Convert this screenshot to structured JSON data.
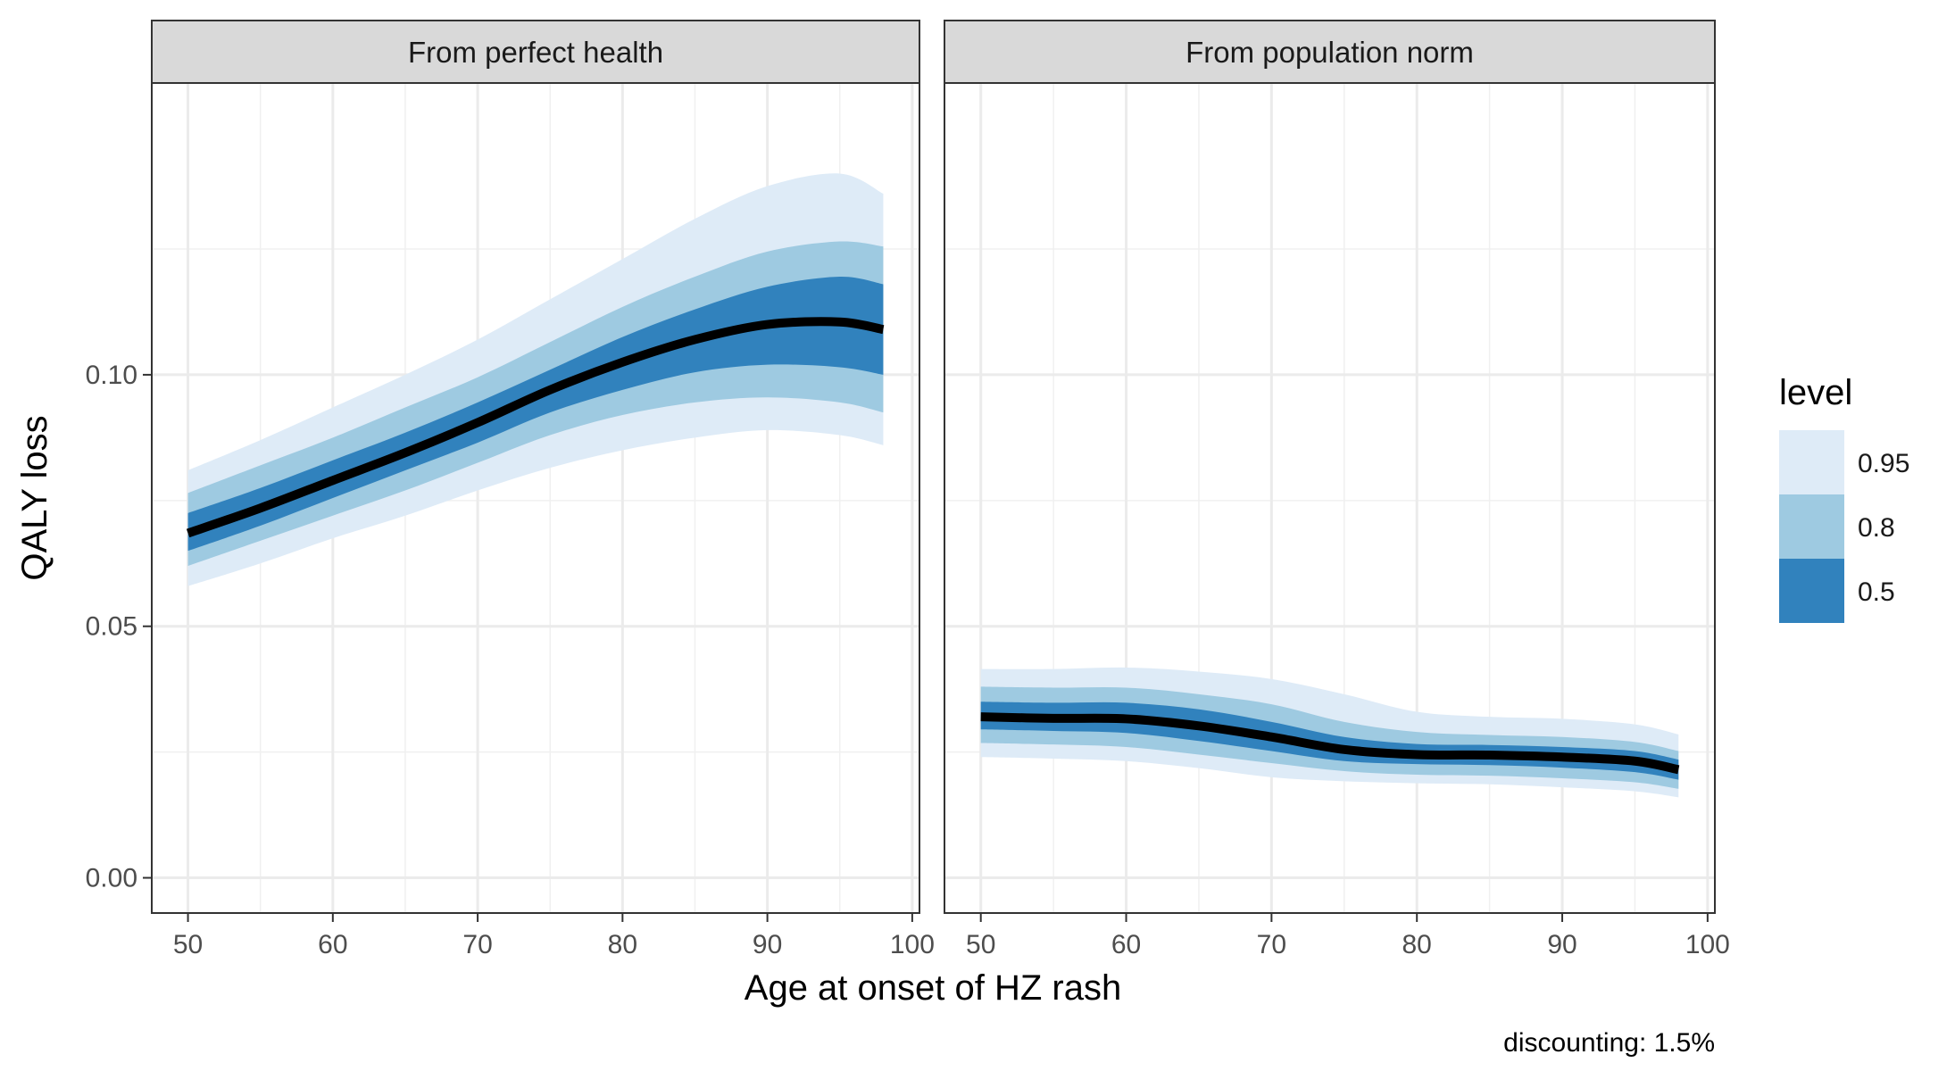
{
  "chart_data": {
    "type": "area",
    "ylabel": "QALY loss",
    "xlabel": "Age at onset of HZ rash",
    "caption": "discounting: 1.5%",
    "xlim": [
      47.5,
      100.5
    ],
    "ylim": [
      -0.007,
      0.158
    ],
    "x_ticks": [
      50,
      60,
      70,
      80,
      90,
      100
    ],
    "x_tick_labels": [
      "50",
      "60",
      "70",
      "80",
      "90",
      "100"
    ],
    "y_ticks": [
      0.0,
      0.05,
      0.1
    ],
    "y_tick_labels": [
      "0.00",
      "0.05",
      "0.10"
    ],
    "y_minor_ticks": [
      0.025,
      0.075,
      0.125
    ],
    "x_minor_ticks": [
      55,
      65,
      75,
      85,
      95
    ],
    "grid": true,
    "legend": {
      "title": "level",
      "position": "right",
      "entries": [
        {
          "label": "0.95",
          "color": "#deebf7"
        },
        {
          "label": "0.8",
          "color": "#9ecae1"
        },
        {
          "label": "0.5",
          "color": "#3182bd"
        }
      ]
    },
    "median_color": "#000000",
    "panels": [
      {
        "strip": "From perfect health",
        "x": [
          50,
          55,
          60,
          65,
          70,
          75,
          80,
          85,
          90,
          95,
          98
        ],
        "median": [
          0.0685,
          0.0735,
          0.079,
          0.0845,
          0.0905,
          0.097,
          0.1025,
          0.107,
          0.11,
          0.1105,
          0.109
        ],
        "bands": {
          "0.95": {
            "lower": [
              0.058,
              0.0625,
              0.0675,
              0.072,
              0.077,
              0.0815,
              0.085,
              0.0875,
              0.089,
              0.088,
              0.086
            ],
            "upper": [
              0.081,
              0.087,
              0.0935,
              0.1,
              0.107,
              0.115,
              0.123,
              0.131,
              0.1375,
              0.14,
              0.136
            ]
          },
          "0.8": {
            "lower": [
              0.062,
              0.067,
              0.072,
              0.077,
              0.0825,
              0.088,
              0.092,
              0.0945,
              0.0955,
              0.0945,
              0.0925
            ],
            "upper": [
              0.0765,
              0.082,
              0.0875,
              0.0935,
              0.0995,
              0.1065,
              0.1135,
              0.1195,
              0.1245,
              0.1265,
              0.1255
            ]
          },
          "0.5": {
            "lower": [
              0.065,
              0.07,
              0.0755,
              0.081,
              0.0865,
              0.0925,
              0.097,
              0.1005,
              0.102,
              0.1015,
              0.1
            ],
            "upper": [
              0.0725,
              0.0775,
              0.083,
              0.0885,
              0.0945,
              0.101,
              0.1075,
              0.113,
              0.1175,
              0.1195,
              0.118
            ]
          }
        }
      },
      {
        "strip": "From population norm",
        "x": [
          50,
          55,
          60,
          65,
          70,
          75,
          80,
          85,
          90,
          95,
          98
        ],
        "median": [
          0.032,
          0.0317,
          0.0316,
          0.0302,
          0.028,
          0.0255,
          0.0245,
          0.0244,
          0.024,
          0.0232,
          0.0215
        ],
        "bands": {
          "0.95": {
            "lower": [
              0.024,
              0.0237,
              0.0232,
              0.0218,
              0.02,
              0.0192,
              0.0188,
              0.0186,
              0.018,
              0.0172,
              0.016
            ],
            "upper": [
              0.0415,
              0.0415,
              0.0418,
              0.041,
              0.0395,
              0.0365,
              0.033,
              0.032,
              0.0316,
              0.0305,
              0.0285
            ]
          },
          "0.8": {
            "lower": [
              0.0268,
              0.0265,
              0.026,
              0.0245,
              0.0228,
              0.0212,
              0.0205,
              0.0203,
              0.0198,
              0.019,
              0.0177
            ],
            "upper": [
              0.038,
              0.0378,
              0.0378,
              0.0365,
              0.0345,
              0.031,
              0.029,
              0.0284,
              0.028,
              0.027,
              0.0252
            ]
          },
          "0.5": {
            "lower": [
              0.0295,
              0.0292,
              0.0288,
              0.0272,
              0.0252,
              0.0232,
              0.0226,
              0.0224,
              0.0219,
              0.021,
              0.0195
            ],
            "upper": [
              0.035,
              0.0348,
              0.0348,
              0.0335,
              0.031,
              0.028,
              0.0266,
              0.0264,
              0.026,
              0.0252,
              0.0235
            ]
          }
        }
      }
    ]
  }
}
